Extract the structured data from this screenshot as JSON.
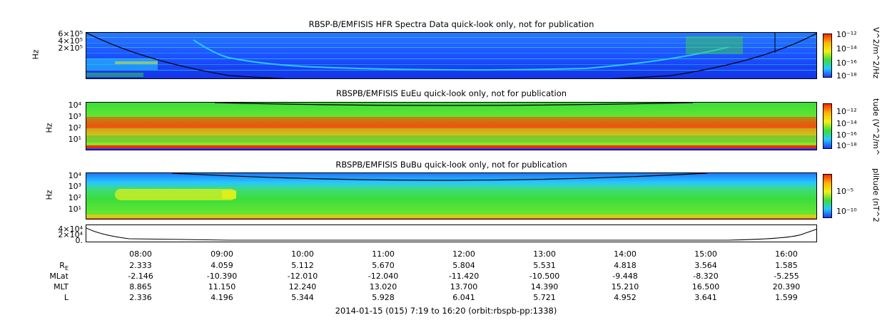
{
  "panels": [
    {
      "title": "RBSP-B/EMFISIS  HFR Spectra Data quick-look only, not for publication",
      "ylabel": "Hz",
      "yticks": [
        "6×10⁵",
        "4×10⁵",
        "2×10⁵"
      ],
      "yticks_top": "5",
      "cbar_ticks": [
        "10⁻¹²",
        "10⁻¹⁴",
        "10⁻¹⁶",
        "10⁻¹⁸"
      ],
      "cbar_label": "V^2/m^2/Hz"
    },
    {
      "title": "RBSPB/EMFISIS  EuEu quick-look only, not for publication",
      "ylabel": "Hz",
      "yticks": [
        "10⁴",
        "10³",
        "10²",
        "10¹"
      ],
      "cbar_ticks": [
        "10⁻¹²",
        "10⁻¹⁴",
        "10⁻¹⁶",
        "10⁻¹⁸"
      ],
      "cbar_label": "tude (V^2/m^"
    },
    {
      "title": "RBSPB/EMFISIS  BuBu quick-look only, not for publication",
      "ylabel": "Hz",
      "yticks": [
        "10⁴",
        "10³",
        "10²",
        "10¹"
      ],
      "cbar_ticks": [
        "10⁻⁵",
        "10⁻¹⁰"
      ],
      "cbar_label": "plitude (nT^2"
    }
  ],
  "line_panel": {
    "yticks": [
      "4×10⁴",
      "2×10⁴",
      "0."
    ]
  },
  "time_labels": [
    "08:00",
    "09:00",
    "10:00",
    "11:00",
    "12:00",
    "13:00",
    "14:00",
    "15:00",
    "16:00"
  ],
  "ephemeris": [
    {
      "label": "R",
      "sub": "E",
      "values": [
        "2.333",
        "4.059",
        "5.112",
        "5.670",
        "5.804",
        "5.531",
        "4.818",
        "3.564",
        "1.585"
      ]
    },
    {
      "label": "MLat",
      "sub": "",
      "values": [
        "-2.146",
        "-10.390",
        "-12.010",
        "-12.040",
        "-11.420",
        "-10.500",
        "-9.448",
        "-8.320",
        "-5.255"
      ]
    },
    {
      "label": "MLT",
      "sub": "",
      "values": [
        "8.865",
        "11.150",
        "12.240",
        "13.020",
        "13.700",
        "14.390",
        "15.210",
        "16.500",
        "20.390"
      ]
    },
    {
      "label": "L",
      "sub": "",
      "values": [
        "2.336",
        "4.196",
        "5.344",
        "5.928",
        "6.041",
        "5.721",
        "4.952",
        "3.641",
        "1.599"
      ]
    }
  ],
  "footer": "2014-01-15 (015) 7:19 to 16:20 (orbit:rbspb-pp:1338)",
  "colors": {
    "blue": "#1e3cff",
    "cyan": "#28c8ff",
    "green": "#3cdc3c",
    "yellow": "#f0f014",
    "red": "#ff2800"
  },
  "chart_data": [
    {
      "type": "heatmap",
      "title": "RBSP-B/EMFISIS  HFR Spectra Data quick-look only, not for publication",
      "ylabel": "Hz",
      "x_range": [
        "7:19",
        "16:20"
      ],
      "colorbar_label": "V^2/m^2/Hz",
      "colorbar_ticks": [
        "10^-12",
        "10^-14",
        "10^-16",
        "10^-18"
      ]
    },
    {
      "type": "heatmap",
      "title": "RBSPB/EMFISIS  EuEu quick-look only, not for publication",
      "ylabel": "Hz",
      "yscale": "log",
      "yticks": [
        "10^4",
        "10^3",
        "10^2",
        "10^1"
      ],
      "colorbar_label": "tude (V^2/m^",
      "colorbar_ticks": [
        "10^-12",
        "10^-14",
        "10^-16",
        "10^-18"
      ]
    },
    {
      "type": "heatmap",
      "title": "RBSPB/EMFISIS  BuBu quick-look only, not for publication",
      "ylabel": "Hz",
      "yscale": "log",
      "yticks": [
        "10^4",
        "10^3",
        "10^2",
        "10^1"
      ],
      "colorbar_label": "plitude (nT^2",
      "colorbar_ticks": [
        "10^-5",
        "10^-10"
      ]
    },
    {
      "type": "line",
      "yticks": [
        "4x10^4",
        "2x10^4",
        "0."
      ]
    }
  ]
}
